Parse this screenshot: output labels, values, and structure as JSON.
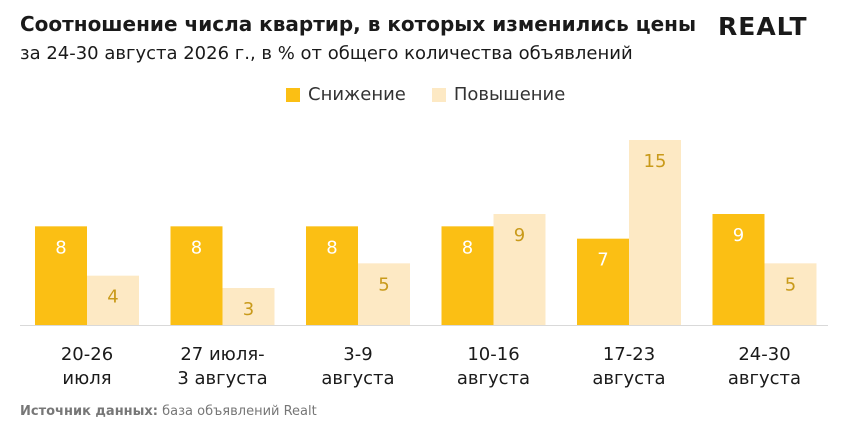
{
  "header": {
    "title": "Соотношение числа квартир, в которых изменились цены",
    "subtitle": "за 24-30 августа 2026 г., в % от общего количества объявлений",
    "logo_text": "REALT"
  },
  "source": {
    "label": "Источник данных:",
    "text": " база объявлений Realt"
  },
  "colors": {
    "decrease": "#fbbf14",
    "increase": "#fde9c4",
    "label_on_dark": "#ffffff",
    "label_on_light": "#c99a1a"
  },
  "chart_data": {
    "type": "bar",
    "categories": [
      [
        "20-26",
        "июля"
      ],
      [
        "27 июля-",
        "3 августа"
      ],
      [
        "3-9",
        "августа"
      ],
      [
        "10-16",
        "августа"
      ],
      [
        "17-23",
        "августа"
      ],
      [
        "24-30",
        "августа"
      ]
    ],
    "series": [
      {
        "name": "Снижение",
        "values": [
          8,
          8,
          8,
          8,
          7,
          9
        ]
      },
      {
        "name": "Повышение",
        "values": [
          4,
          3,
          5,
          9,
          15,
          5
        ]
      }
    ],
    "ylim": [
      0,
      15
    ],
    "grid": false,
    "legend_position": "top-center",
    "title": "Соотношение числа квартир, в которых изменились цены",
    "xlabel": "",
    "ylabel": ""
  }
}
